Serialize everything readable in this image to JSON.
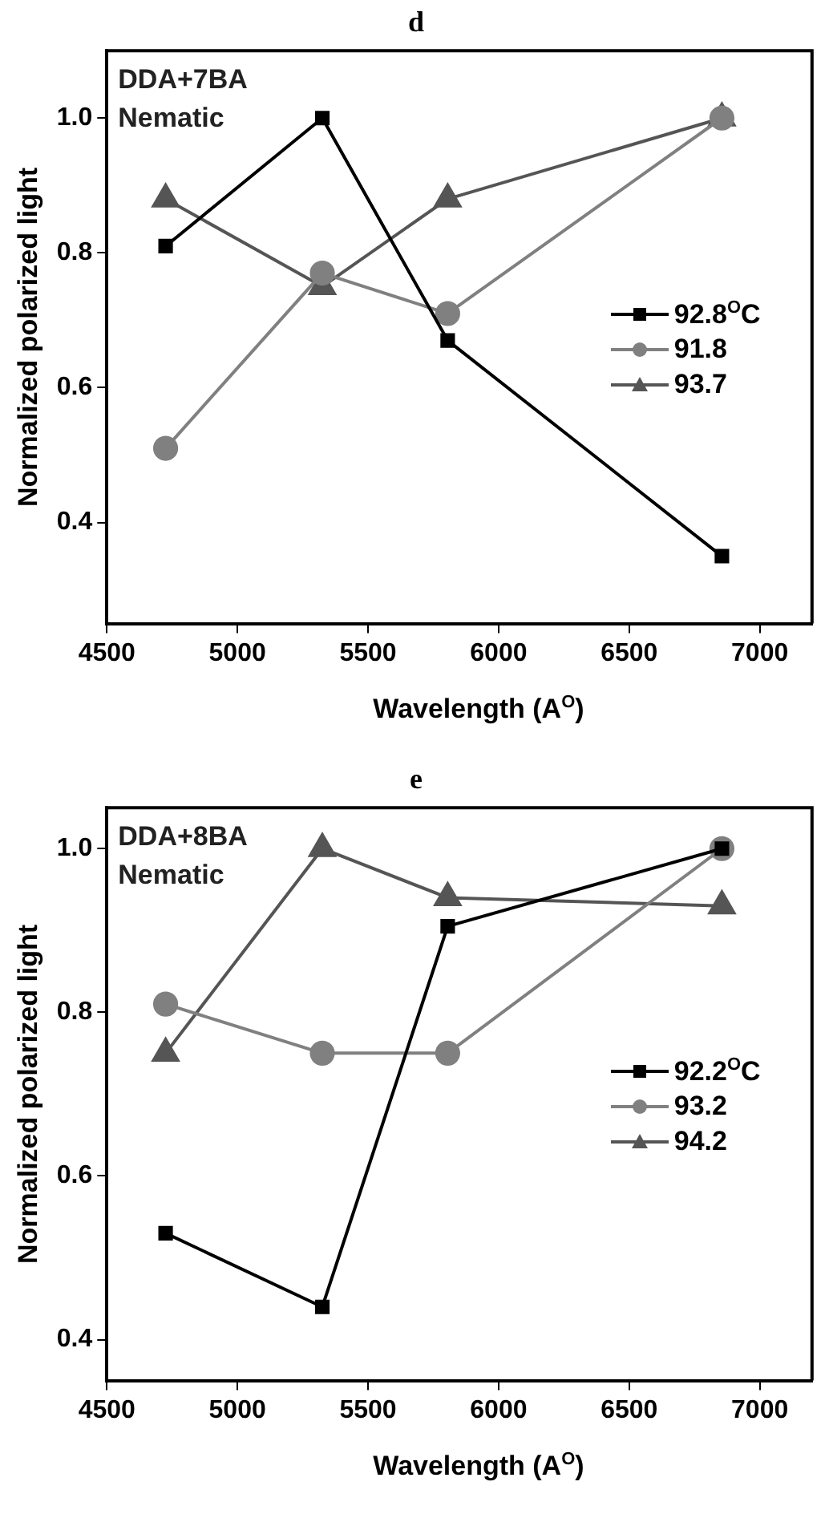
{
  "chart_data": [
    {
      "type": "line",
      "title": "d",
      "xlabel": "Wavelength  (A$^{O}$)",
      "ylabel": "Normalized polarized light",
      "annotations": [
        "DDA+7BA",
        "Nematic"
      ],
      "x": [
        4725,
        5325,
        5805,
        6855
      ],
      "series": [
        {
          "name": "92.8$^{O}$C",
          "color": "#000000",
          "marker": "square",
          "values": [
            0.81,
            1.0,
            0.67,
            0.35
          ]
        },
        {
          "name": "91.8",
          "color": "#808080",
          "marker": "circle",
          "values": [
            0.51,
            0.77,
            0.71,
            1.0
          ]
        },
        {
          "name": "93.7",
          "color": "#555555",
          "marker": "triangle",
          "values": [
            0.88,
            0.75,
            0.88,
            1.0
          ]
        }
      ],
      "xlim": [
        4500,
        7200
      ],
      "xticks": [
        4500,
        5000,
        5500,
        6000,
        6500,
        7000
      ],
      "ylim": [
        0.25,
        1.1
      ],
      "yticks": [
        {
          "value": 0.4,
          "label": "0.4"
        },
        {
          "value": 0.6,
          "label": "0.6"
        },
        {
          "value": 0.8,
          "label": "0.8"
        },
        {
          "value": 1.0,
          "label": "1.0"
        }
      ],
      "grid": false,
      "legend": "right",
      "line_style": "solid"
    },
    {
      "type": "line",
      "title": "e",
      "xlabel": "Wavelength (A$^{O}$)",
      "ylabel": "Normalized polarized light",
      "annotations": [
        "DDA+8BA",
        "Nematic"
      ],
      "x": [
        4725,
        5325,
        5805,
        6855
      ],
      "series": [
        {
          "name": "92.2$^{O}$C",
          "color": "#000000",
          "marker": "square",
          "values": [
            0.53,
            0.44,
            0.905,
            1.0
          ]
        },
        {
          "name": "93.2",
          "color": "#808080",
          "marker": "circle",
          "values": [
            0.81,
            0.75,
            0.75,
            1.0
          ]
        },
        {
          "name": "94.2",
          "color": "#555555",
          "marker": "triangle",
          "values": [
            0.75,
            1.0,
            0.94,
            0.93
          ]
        }
      ],
      "xlim": [
        4500,
        7200
      ],
      "xticks": [
        4500,
        5000,
        5500,
        6000,
        6500,
        7000
      ],
      "ylim": [
        0.35,
        1.05
      ],
      "yticks": [
        {
          "value": 0.4,
          "label": "0.4"
        },
        {
          "value": 0.6,
          "label": "0.6"
        },
        {
          "value": 0.8,
          "label": "0.8"
        },
        {
          "value": 1.0,
          "label": "1.0"
        }
      ],
      "grid": false,
      "legend": "right",
      "line_style": "solid"
    }
  ]
}
